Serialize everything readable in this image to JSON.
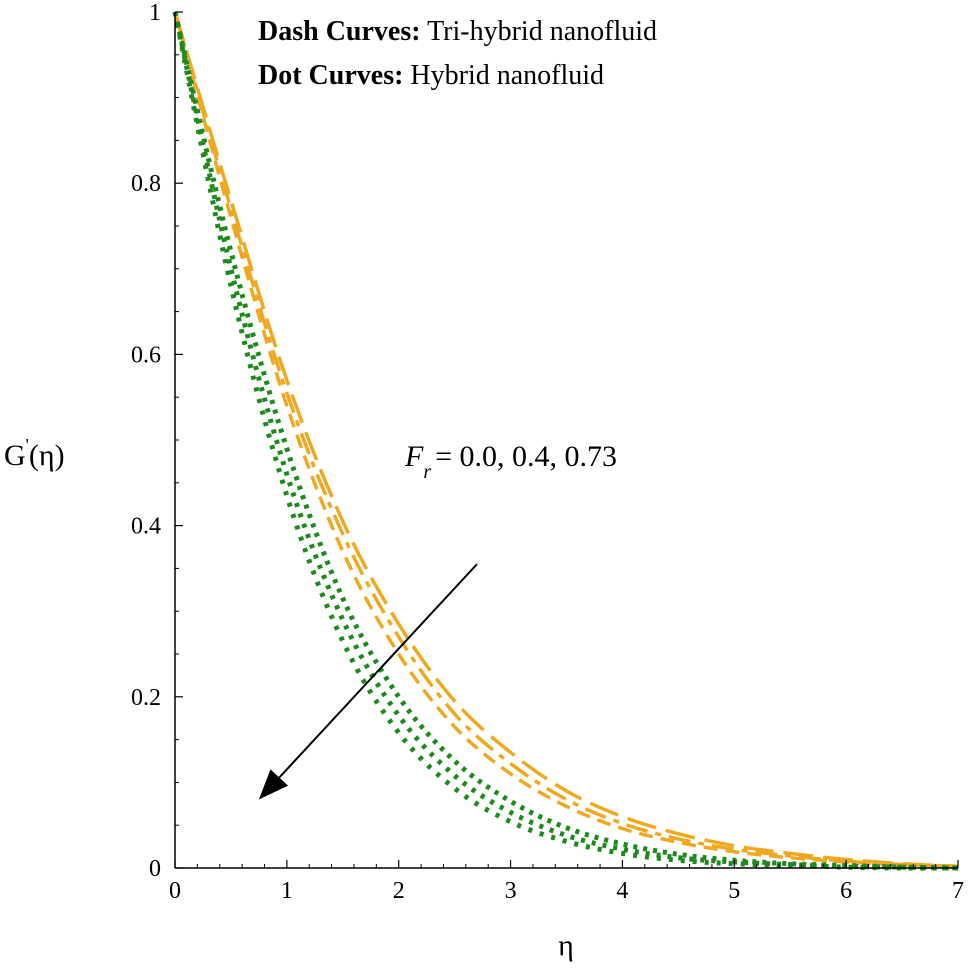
{
  "chart_data": {
    "type": "line",
    "xlabel": "η",
    "ylabel": "G'(η)",
    "xlim": [
      0,
      7
    ],
    "ylim": [
      0,
      1
    ],
    "x_ticks": [
      "0",
      "1",
      "2",
      "3",
      "4",
      "5",
      "6",
      "7"
    ],
    "y_ticks": [
      "0",
      "0.2",
      "0.4",
      "0.6",
      "0.8",
      "1"
    ],
    "legend": {
      "dash_label": "Dash Curves:",
      "dash_text": "Tri-hybrid nanofluid",
      "dot_label": "Dot Curves:",
      "dot_text": "Hybrid nanofluid"
    },
    "annotation": {
      "symbol": "F",
      "subscript": "r",
      "text": "= 0.0, 0.4, 0.73"
    },
    "colors": {
      "dash": "#f0a820",
      "dot": "#1e8a1e",
      "axis": "#000000"
    },
    "series": [
      {
        "style": "dash",
        "Fr": 0.0,
        "x": [
          0,
          0.5,
          1,
          1.5,
          2,
          2.5,
          3,
          3.5,
          4,
          4.5,
          5,
          5.5,
          6,
          6.5,
          7
        ],
        "y": [
          1,
          0.78,
          0.57,
          0.405,
          0.285,
          0.195,
          0.135,
          0.09,
          0.06,
          0.04,
          0.026,
          0.017,
          0.01,
          0.005,
          0.002
        ]
      },
      {
        "style": "dash",
        "Fr": 0.4,
        "x": [
          0,
          0.5,
          1,
          1.5,
          2,
          2.5,
          3,
          3.5,
          4,
          4.5,
          5,
          5.5,
          6,
          6.5,
          7
        ],
        "y": [
          1,
          0.77,
          0.555,
          0.39,
          0.27,
          0.18,
          0.122,
          0.08,
          0.052,
          0.034,
          0.022,
          0.014,
          0.008,
          0.004,
          0.002
        ]
      },
      {
        "style": "dash",
        "Fr": 0.73,
        "x": [
          0,
          0.5,
          1,
          1.5,
          2,
          2.5,
          3,
          3.5,
          4,
          4.5,
          5,
          5.5,
          6,
          6.5,
          7
        ],
        "y": [
          1,
          0.76,
          0.54,
          0.37,
          0.25,
          0.165,
          0.11,
          0.072,
          0.046,
          0.03,
          0.019,
          0.012,
          0.007,
          0.004,
          0.001
        ]
      },
      {
        "style": "dot",
        "Fr": 0.0,
        "x": [
          0,
          0.5,
          1,
          1.5,
          2,
          2.5,
          3,
          3.5,
          4,
          4.5,
          5,
          5.5,
          6,
          6.5,
          7
        ],
        "y": [
          1,
          0.72,
          0.49,
          0.315,
          0.2,
          0.125,
          0.078,
          0.047,
          0.028,
          0.016,
          0.009,
          0.005,
          0.003,
          0.001,
          0
        ]
      },
      {
        "style": "dot",
        "Fr": 0.4,
        "x": [
          0,
          0.5,
          1,
          1.5,
          2,
          2.5,
          3,
          3.5,
          4,
          4.5,
          5,
          5.5,
          6,
          6.5,
          7
        ],
        "y": [
          1,
          0.7,
          0.46,
          0.29,
          0.178,
          0.108,
          0.065,
          0.038,
          0.022,
          0.012,
          0.007,
          0.004,
          0.002,
          0.001,
          0
        ]
      },
      {
        "style": "dot",
        "Fr": 0.73,
        "x": [
          0,
          0.5,
          1,
          1.5,
          2,
          2.5,
          3,
          3.5,
          4,
          4.5,
          5,
          5.5,
          6,
          6.5,
          7
        ],
        "y": [
          1,
          0.68,
          0.435,
          0.265,
          0.158,
          0.093,
          0.054,
          0.031,
          0.017,
          0.009,
          0.005,
          0.003,
          0.001,
          0,
          0
        ]
      }
    ],
    "arrow": {
      "from": [
        2.7,
        0.355
      ],
      "to": [
        0.75,
        0.08
      ]
    }
  }
}
